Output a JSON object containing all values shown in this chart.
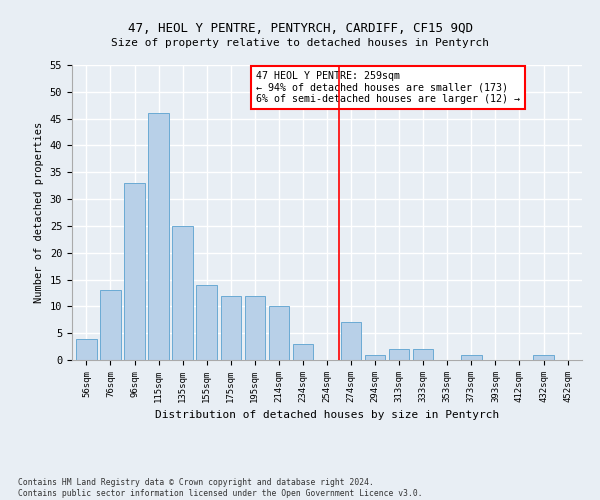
{
  "title1": "47, HEOL Y PENTRE, PENTYRCH, CARDIFF, CF15 9QD",
  "title2": "Size of property relative to detached houses in Pentyrch",
  "xlabel": "Distribution of detached houses by size in Pentyrch",
  "ylabel": "Number of detached properties",
  "categories": [
    "56sqm",
    "76sqm",
    "96sqm",
    "115sqm",
    "135sqm",
    "155sqm",
    "175sqm",
    "195sqm",
    "214sqm",
    "234sqm",
    "254sqm",
    "274sqm",
    "294sqm",
    "313sqm",
    "333sqm",
    "353sqm",
    "373sqm",
    "393sqm",
    "412sqm",
    "432sqm",
    "452sqm"
  ],
  "values": [
    4,
    13,
    33,
    46,
    25,
    14,
    12,
    12,
    10,
    3,
    0,
    7,
    1,
    2,
    2,
    0,
    1,
    0,
    0,
    1,
    0
  ],
  "bar_color": "#b8d0e8",
  "bar_edge_color": "#6aaad4",
  "red_line_x": 10.5,
  "annotation_text": "47 HEOL Y PENTRE: 259sqm\n← 94% of detached houses are smaller (173)\n6% of semi-detached houses are larger (12) →",
  "ylim": [
    0,
    55
  ],
  "yticks": [
    0,
    5,
    10,
    15,
    20,
    25,
    30,
    35,
    40,
    45,
    50,
    55
  ],
  "footer": "Contains HM Land Registry data © Crown copyright and database right 2024.\nContains public sector information licensed under the Open Government Licence v3.0.",
  "background_color": "#e8eef4",
  "plot_background": "#e8eef4",
  "grid_color": "#ffffff"
}
